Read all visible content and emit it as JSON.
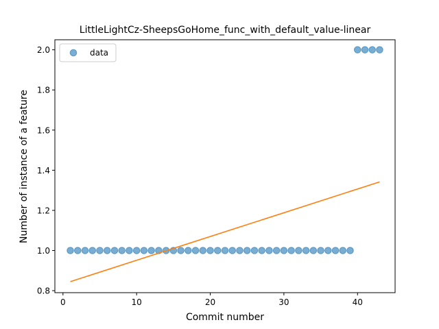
{
  "chart_data": {
    "type": "scatter",
    "title": "LittleLightCz-SheepsGoHome_func_with_default_value-linear",
    "xlabel": "Commit number",
    "ylabel": "Number of instance of a feature",
    "xlim": [
      -1.1,
      45.1
    ],
    "ylim": [
      0.79,
      2.05
    ],
    "xticks": [
      0,
      10,
      20,
      30,
      40
    ],
    "yticks": [
      0.8,
      1.0,
      1.2,
      1.4,
      1.6,
      1.8,
      2.0
    ],
    "xtick_labels": [
      "0",
      "10",
      "20",
      "30",
      "40"
    ],
    "ytick_labels": [
      "0.8",
      "1.0",
      "1.2",
      "1.4",
      "1.6",
      "1.8",
      "2.0"
    ],
    "legend_position": "top-left",
    "grid": false,
    "series": [
      {
        "name": "data",
        "kind": "scatter",
        "color": "#1f77b4",
        "x": [
          1,
          2,
          3,
          4,
          5,
          6,
          7,
          8,
          9,
          10,
          11,
          12,
          13,
          14,
          15,
          16,
          17,
          18,
          19,
          20,
          21,
          22,
          23,
          24,
          25,
          26,
          27,
          28,
          29,
          30,
          31,
          32,
          33,
          34,
          35,
          36,
          37,
          38,
          39,
          40,
          41,
          42,
          43
        ],
        "y": [
          1,
          1,
          1,
          1,
          1,
          1,
          1,
          1,
          1,
          1,
          1,
          1,
          1,
          1,
          1,
          1,
          1,
          1,
          1,
          1,
          1,
          1,
          1,
          1,
          1,
          1,
          1,
          1,
          1,
          1,
          1,
          1,
          1,
          1,
          1,
          1,
          1,
          1,
          1,
          2,
          2,
          2,
          2
        ]
      },
      {
        "kind": "line",
        "color": "#ff7f0e",
        "x": [
          1,
          43
        ],
        "y": [
          0.845,
          1.342
        ]
      }
    ]
  }
}
